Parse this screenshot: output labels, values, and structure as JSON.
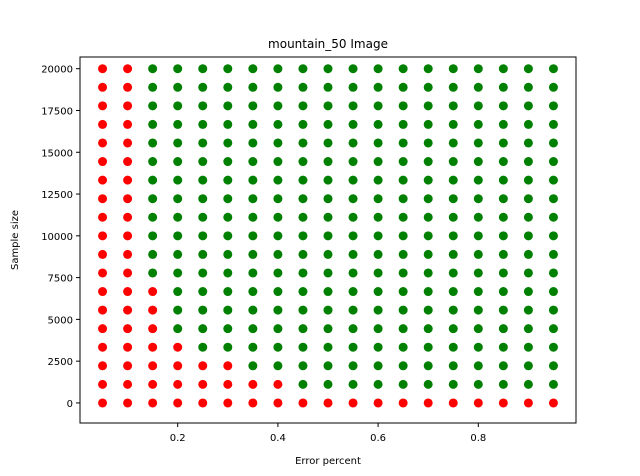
{
  "chart_data": {
    "type": "scatter",
    "title": "mountain_50 Image",
    "xlabel": "Error percent",
    "ylabel": "Sample size",
    "xlim": [
      0.005,
      0.995
    ],
    "ylim": [
      -1200,
      20700
    ],
    "xticks": [
      {
        "value": 0.2,
        "label": "0.2"
      },
      {
        "value": 0.4,
        "label": "0.4"
      },
      {
        "value": 0.6,
        "label": "0.6"
      },
      {
        "value": 0.8,
        "label": "0.8"
      }
    ],
    "yticks": [
      {
        "value": 0,
        "label": "0"
      },
      {
        "value": 2500,
        "label": "2500"
      },
      {
        "value": 5000,
        "label": "5000"
      },
      {
        "value": 7500,
        "label": "7500"
      },
      {
        "value": 10000,
        "label": "10000"
      },
      {
        "value": 12500,
        "label": "12500"
      },
      {
        "value": 15000,
        "label": "15000"
      },
      {
        "value": 17500,
        "label": "17500"
      },
      {
        "value": 20000,
        "label": "20000"
      }
    ],
    "x_values": [
      0.05,
      0.1,
      0.15,
      0.2,
      0.25,
      0.3,
      0.35,
      0.4,
      0.45,
      0.5,
      0.55,
      0.6,
      0.65,
      0.7,
      0.75,
      0.8,
      0.85,
      0.9,
      0.95
    ],
    "y_values": [
      0,
      1111,
      2222,
      3333,
      4444,
      5556,
      6667,
      7778,
      8889,
      10000,
      11111,
      12222,
      13333,
      14444,
      15556,
      16667,
      17778,
      18889,
      20000
    ],
    "red_min_y_index_by_x": [
      0,
      0,
      0,
      0,
      0,
      0,
      0,
      0,
      0,
      0,
      0,
      0,
      0,
      0,
      0,
      0,
      0,
      0,
      0
    ],
    "red_max_y_index_by_x": [
      18,
      18,
      6,
      3,
      2,
      2,
      1,
      1,
      0,
      0,
      0,
      0,
      0,
      0,
      0,
      0,
      0,
      0,
      0
    ],
    "colors": {
      "red": "#ff0000",
      "green": "#008000"
    },
    "grid": false,
    "legend": "none"
  }
}
